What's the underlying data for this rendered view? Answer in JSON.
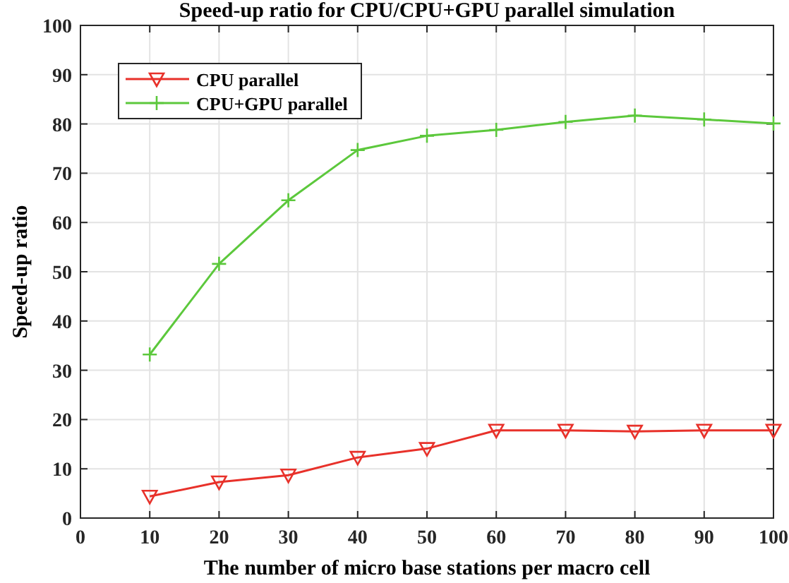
{
  "chart_data": {
    "type": "line",
    "title": "Speed-up ratio for CPU/CPU+GPU parallel simulation",
    "xlabel": "The number of micro base stations per macro cell",
    "ylabel": "Speed-up ratio",
    "x": [
      10,
      20,
      30,
      40,
      50,
      60,
      70,
      80,
      90,
      100
    ],
    "series": [
      {
        "name": "CPU parallel",
        "color": "#e8312a",
        "marker": "triangle",
        "values": [
          4.4,
          7.3,
          8.7,
          12.3,
          14.1,
          17.8,
          17.8,
          17.6,
          17.8,
          17.8
        ]
      },
      {
        "name": "CPU+GPU parallel",
        "color": "#5cc83c",
        "marker": "cross",
        "values": [
          33.2,
          51.6,
          64.5,
          74.7,
          77.6,
          78.8,
          80.4,
          81.7,
          80.9,
          80.1
        ]
      }
    ],
    "xlim": [
      0,
      100
    ],
    "xticks": [
      0,
      10,
      20,
      30,
      40,
      50,
      60,
      70,
      80,
      90,
      100
    ],
    "ylim": [
      0,
      100
    ],
    "yticks": [
      0,
      10,
      20,
      30,
      40,
      50,
      60,
      70,
      80,
      90,
      100
    ],
    "grid": true,
    "legend": "top left",
    "line_style": "solid"
  }
}
